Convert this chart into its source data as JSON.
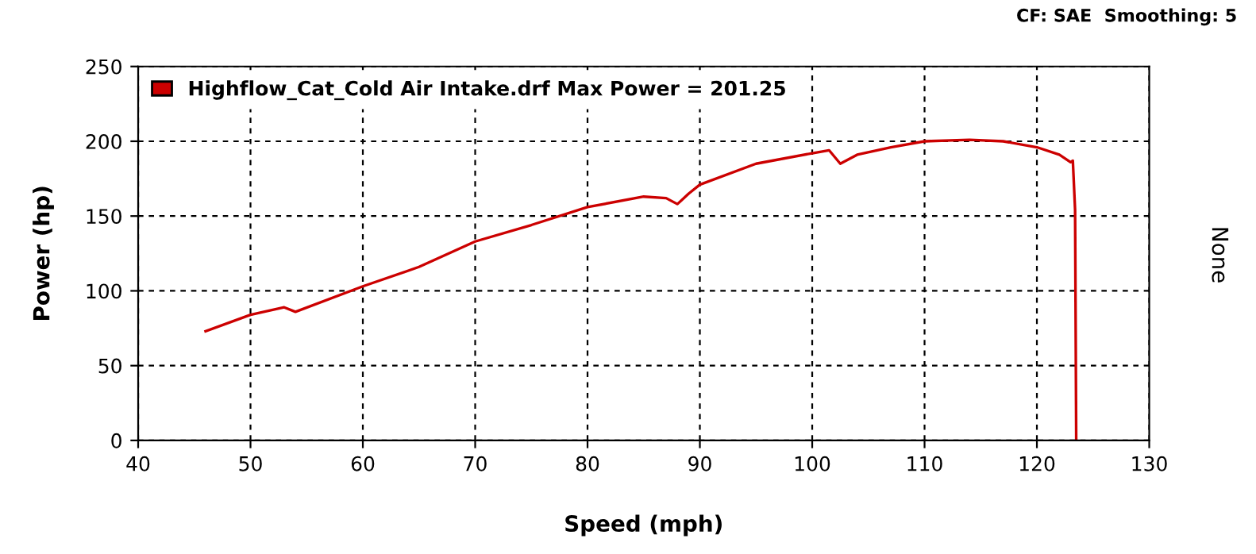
{
  "chart_data": {
    "type": "line",
    "xlabel": "Speed (mph)",
    "ylabel": "Power (hp)",
    "y2label": "None",
    "annotations": [
      "CF: SAE  Smoothing: 5"
    ],
    "series": [
      {
        "name": "Highflow_Cat_Cold Air Intake.drf Max Power = 201.25",
        "color": "#cc0000",
        "x": [
          46,
          50,
          53,
          54,
          60,
          65,
          70,
          75,
          80,
          85,
          87,
          88,
          89,
          90,
          95,
          100,
          101.5,
          102.5,
          104,
          107,
          110,
          114,
          117,
          120,
          122,
          123,
          123.2,
          123.4,
          123.5
        ],
        "values": [
          73,
          84,
          89,
          86,
          103,
          116,
          133,
          144,
          156,
          163,
          162,
          158,
          165,
          171,
          185,
          192,
          194,
          185,
          191,
          196,
          200,
          201,
          200,
          196,
          191,
          186,
          187,
          154,
          0
        ]
      }
    ],
    "xlim": [
      40,
      130
    ],
    "xticks": [
      40,
      50,
      60,
      70,
      80,
      90,
      100,
      110,
      120,
      130
    ],
    "ylim": [
      0,
      250
    ],
    "yticks": [
      0,
      50,
      100,
      150,
      200,
      250
    ],
    "grid": true,
    "legend": "top left",
    "line_style": "solid",
    "marker": "none"
  }
}
